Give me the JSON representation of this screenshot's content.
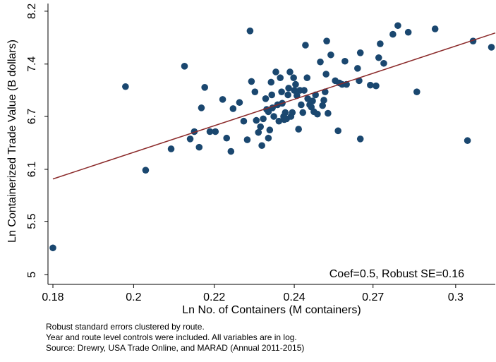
{
  "chart_data": {
    "type": "scatter",
    "x_label": "Ln No. of Containers (M containers)",
    "y_label": "Ln Containerized Trade Value (B dollars)",
    "annotation": "Coef=0.5, Robust SE=0.16",
    "notes": [
      "Robust standard errors clustered by route.",
      "Year and route level controls were included. All variables are in log.",
      "Source: Drewry, USA Trade Online, and MARAD (Annual 2011-2015)"
    ],
    "log_x": true,
    "log_y": true,
    "grid": false,
    "color": "#1a476f",
    "xlim": [
      0.1789,
      0.312
    ],
    "ylim": [
      4.91,
      8.34
    ],
    "xticks": [
      {
        "value": 0.18,
        "label": "0.18"
      },
      {
        "value": 0.199,
        "label": "0.2"
      },
      {
        "value": 0.22,
        "label": "0.22"
      },
      {
        "value": 0.243,
        "label": "0.24"
      },
      {
        "value": 0.268,
        "label": "0.27"
      },
      {
        "value": 0.297,
        "label": "0.3"
      }
    ],
    "yticks": [
      {
        "value": 5,
        "label": "5"
      },
      {
        "value": 5.53,
        "label": "5.5"
      },
      {
        "value": 6.1,
        "label": "6.1"
      },
      {
        "value": 6.74,
        "label": "6.7"
      },
      {
        "value": 7.44,
        "label": "7.4"
      },
      {
        "value": 8.22,
        "label": "8.2"
      }
    ],
    "x": [
      0.18,
      0.197,
      0.202,
      0.2085,
      0.212,
      0.2135,
      0.2146,
      0.2159,
      0.2165,
      0.2174,
      0.2188,
      0.2203,
      0.2223,
      0.2234,
      0.2246,
      0.2252,
      0.227,
      0.2282,
      0.2292,
      0.23,
      0.2304,
      0.2314,
      0.2318,
      0.2324,
      0.233,
      0.2334,
      0.2338,
      0.2345,
      0.2348,
      0.2353,
      0.2353,
      0.2357,
      0.2361,
      0.2363,
      0.2365,
      0.2369,
      0.2375,
      0.238,
      0.2384,
      0.2388,
      0.2392,
      0.2394,
      0.2398,
      0.24,
      0.2403,
      0.2407,
      0.2411,
      0.2413,
      0.2417,
      0.242,
      0.2424,
      0.2428,
      0.243,
      0.2434,
      0.2438,
      0.2443,
      0.2447,
      0.2451,
      0.2456,
      0.246,
      0.2464,
      0.2469,
      0.2471,
      0.2477,
      0.2482,
      0.2486,
      0.249,
      0.2495,
      0.2501,
      0.251,
      0.2517,
      0.2521,
      0.2525,
      0.2528,
      0.253,
      0.2534,
      0.2543,
      0.2557,
      0.2566,
      0.257,
      0.2579,
      0.2588,
      0.2593,
      0.2629,
      0.2634,
      0.2638,
      0.2638,
      0.2671,
      0.269,
      0.2699,
      0.2704,
      0.2716,
      0.2747,
      0.2764,
      0.28,
      0.283,
      0.2895,
      0.3014,
      0.3035,
      0.3105
    ],
    "values": [
      5.26,
      7.13,
      6.09,
      6.34,
      7.41,
      6.46,
      6.55,
      6.36,
      6.85,
      7.12,
      6.55,
      6.55,
      6.96,
      6.47,
      6.31,
      6.84,
      6.92,
      6.68,
      6.45,
      7.92,
      7.2,
      7.06,
      6.69,
      6.54,
      6.61,
      6.38,
      6.71,
      6.97,
      6.83,
      6.8,
      6.47,
      6.57,
      7.19,
      7.02,
      6.85,
      6.74,
      7.33,
      6.89,
      6.68,
      7.25,
      7.06,
      6.91,
      6.74,
      6.7,
      6.79,
      6.71,
      7.02,
      7.11,
      7.33,
      6.74,
      6.79,
      7.25,
      7.08,
      7.16,
      7.01,
      6.58,
      7.08,
      6.89,
      6.79,
      7.08,
      7.71,
      7.25,
      6.97,
      6.89,
      6.86,
      6.94,
      6.8,
      7.02,
      6.77,
      7.47,
      6.88,
      6.95,
      7.06,
      7.3,
      7.77,
      6.78,
      7.57,
      7.21,
      6.56,
      7.18,
      7.16,
      7.48,
      7.16,
      7.38,
      7.21,
      7.6,
      6.46,
      7.15,
      7.14,
      7.53,
      7.73,
      7.45,
      7.87,
      8.0,
      7.9,
      7.06,
      7.95,
      6.44,
      7.77,
      7.68
    ],
    "fit_line": {
      "x": [
        0.18,
        0.312
      ],
      "values": [
        5.99,
        7.89
      ],
      "color": "#8b2a2a"
    }
  }
}
